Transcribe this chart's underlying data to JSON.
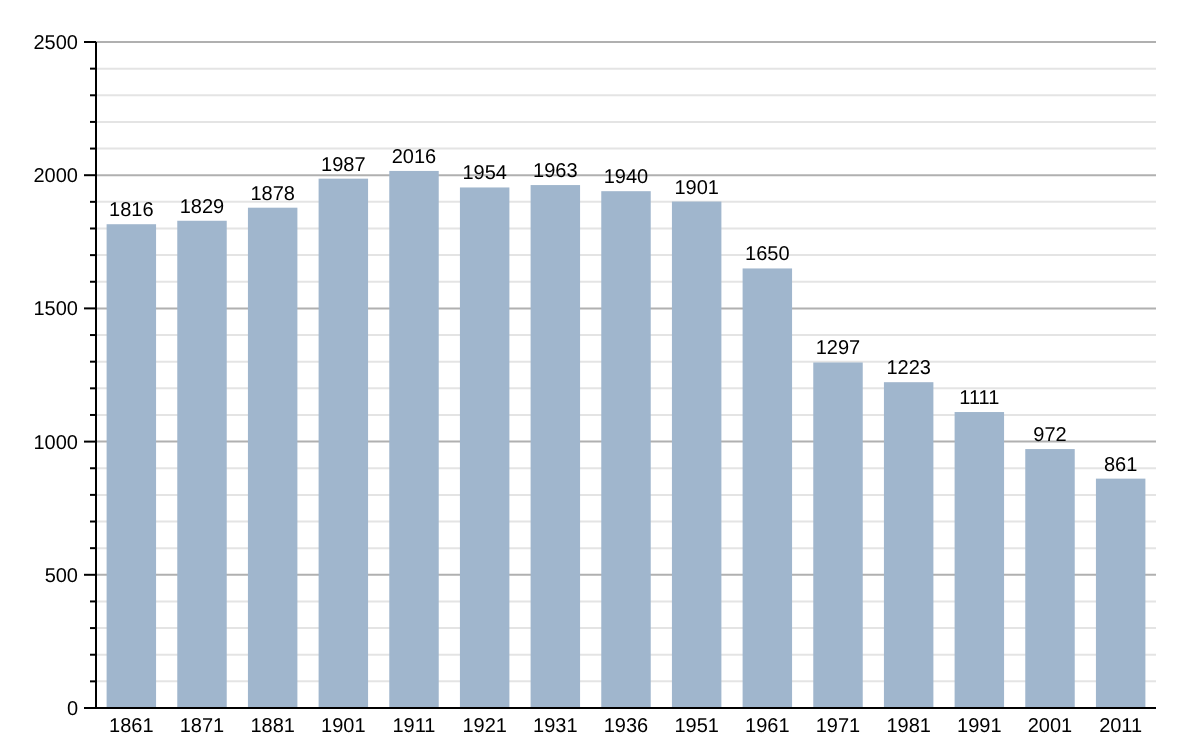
{
  "chart_data": {
    "type": "bar",
    "categories": [
      "1861",
      "1871",
      "1881",
      "1901",
      "1911",
      "1921",
      "1931",
      "1936",
      "1951",
      "1961",
      "1971",
      "1981",
      "1991",
      "2001",
      "2011"
    ],
    "values": [
      1816,
      1829,
      1878,
      1987,
      2016,
      1954,
      1963,
      1940,
      1901,
      1650,
      1297,
      1223,
      1111,
      972,
      861
    ],
    "color": "#a0b6cd",
    "data_labels": true,
    "grid": "y",
    "ylim": [
      0,
      2500
    ],
    "yticks": [
      0,
      {
        "value": 100,
        "label": null
      },
      {
        "value": 200,
        "label": null
      },
      {
        "value": 300,
        "label": null
      },
      {
        "value": 400,
        "label": null
      },
      500,
      {
        "value": 600,
        "label": null
      },
      {
        "value": 700,
        "label": null
      },
      {
        "value": 800,
        "label": null
      },
      {
        "value": 900,
        "label": null
      },
      1000,
      {
        "value": 1100,
        "label": null
      },
      {
        "value": 1200,
        "label": null
      },
      {
        "value": 1300,
        "label": null
      },
      {
        "value": 1400,
        "label": null
      },
      1500,
      {
        "value": 1600,
        "label": null
      },
      {
        "value": 1700,
        "label": null
      },
      {
        "value": 1800,
        "label": null
      },
      {
        "value": 1900,
        "label": null
      },
      2000,
      {
        "value": 2100,
        "label": null
      },
      {
        "value": 2200,
        "label": null
      },
      {
        "value": 2300,
        "label": null
      },
      {
        "value": 2400,
        "label": null
      },
      2500
    ]
  }
}
